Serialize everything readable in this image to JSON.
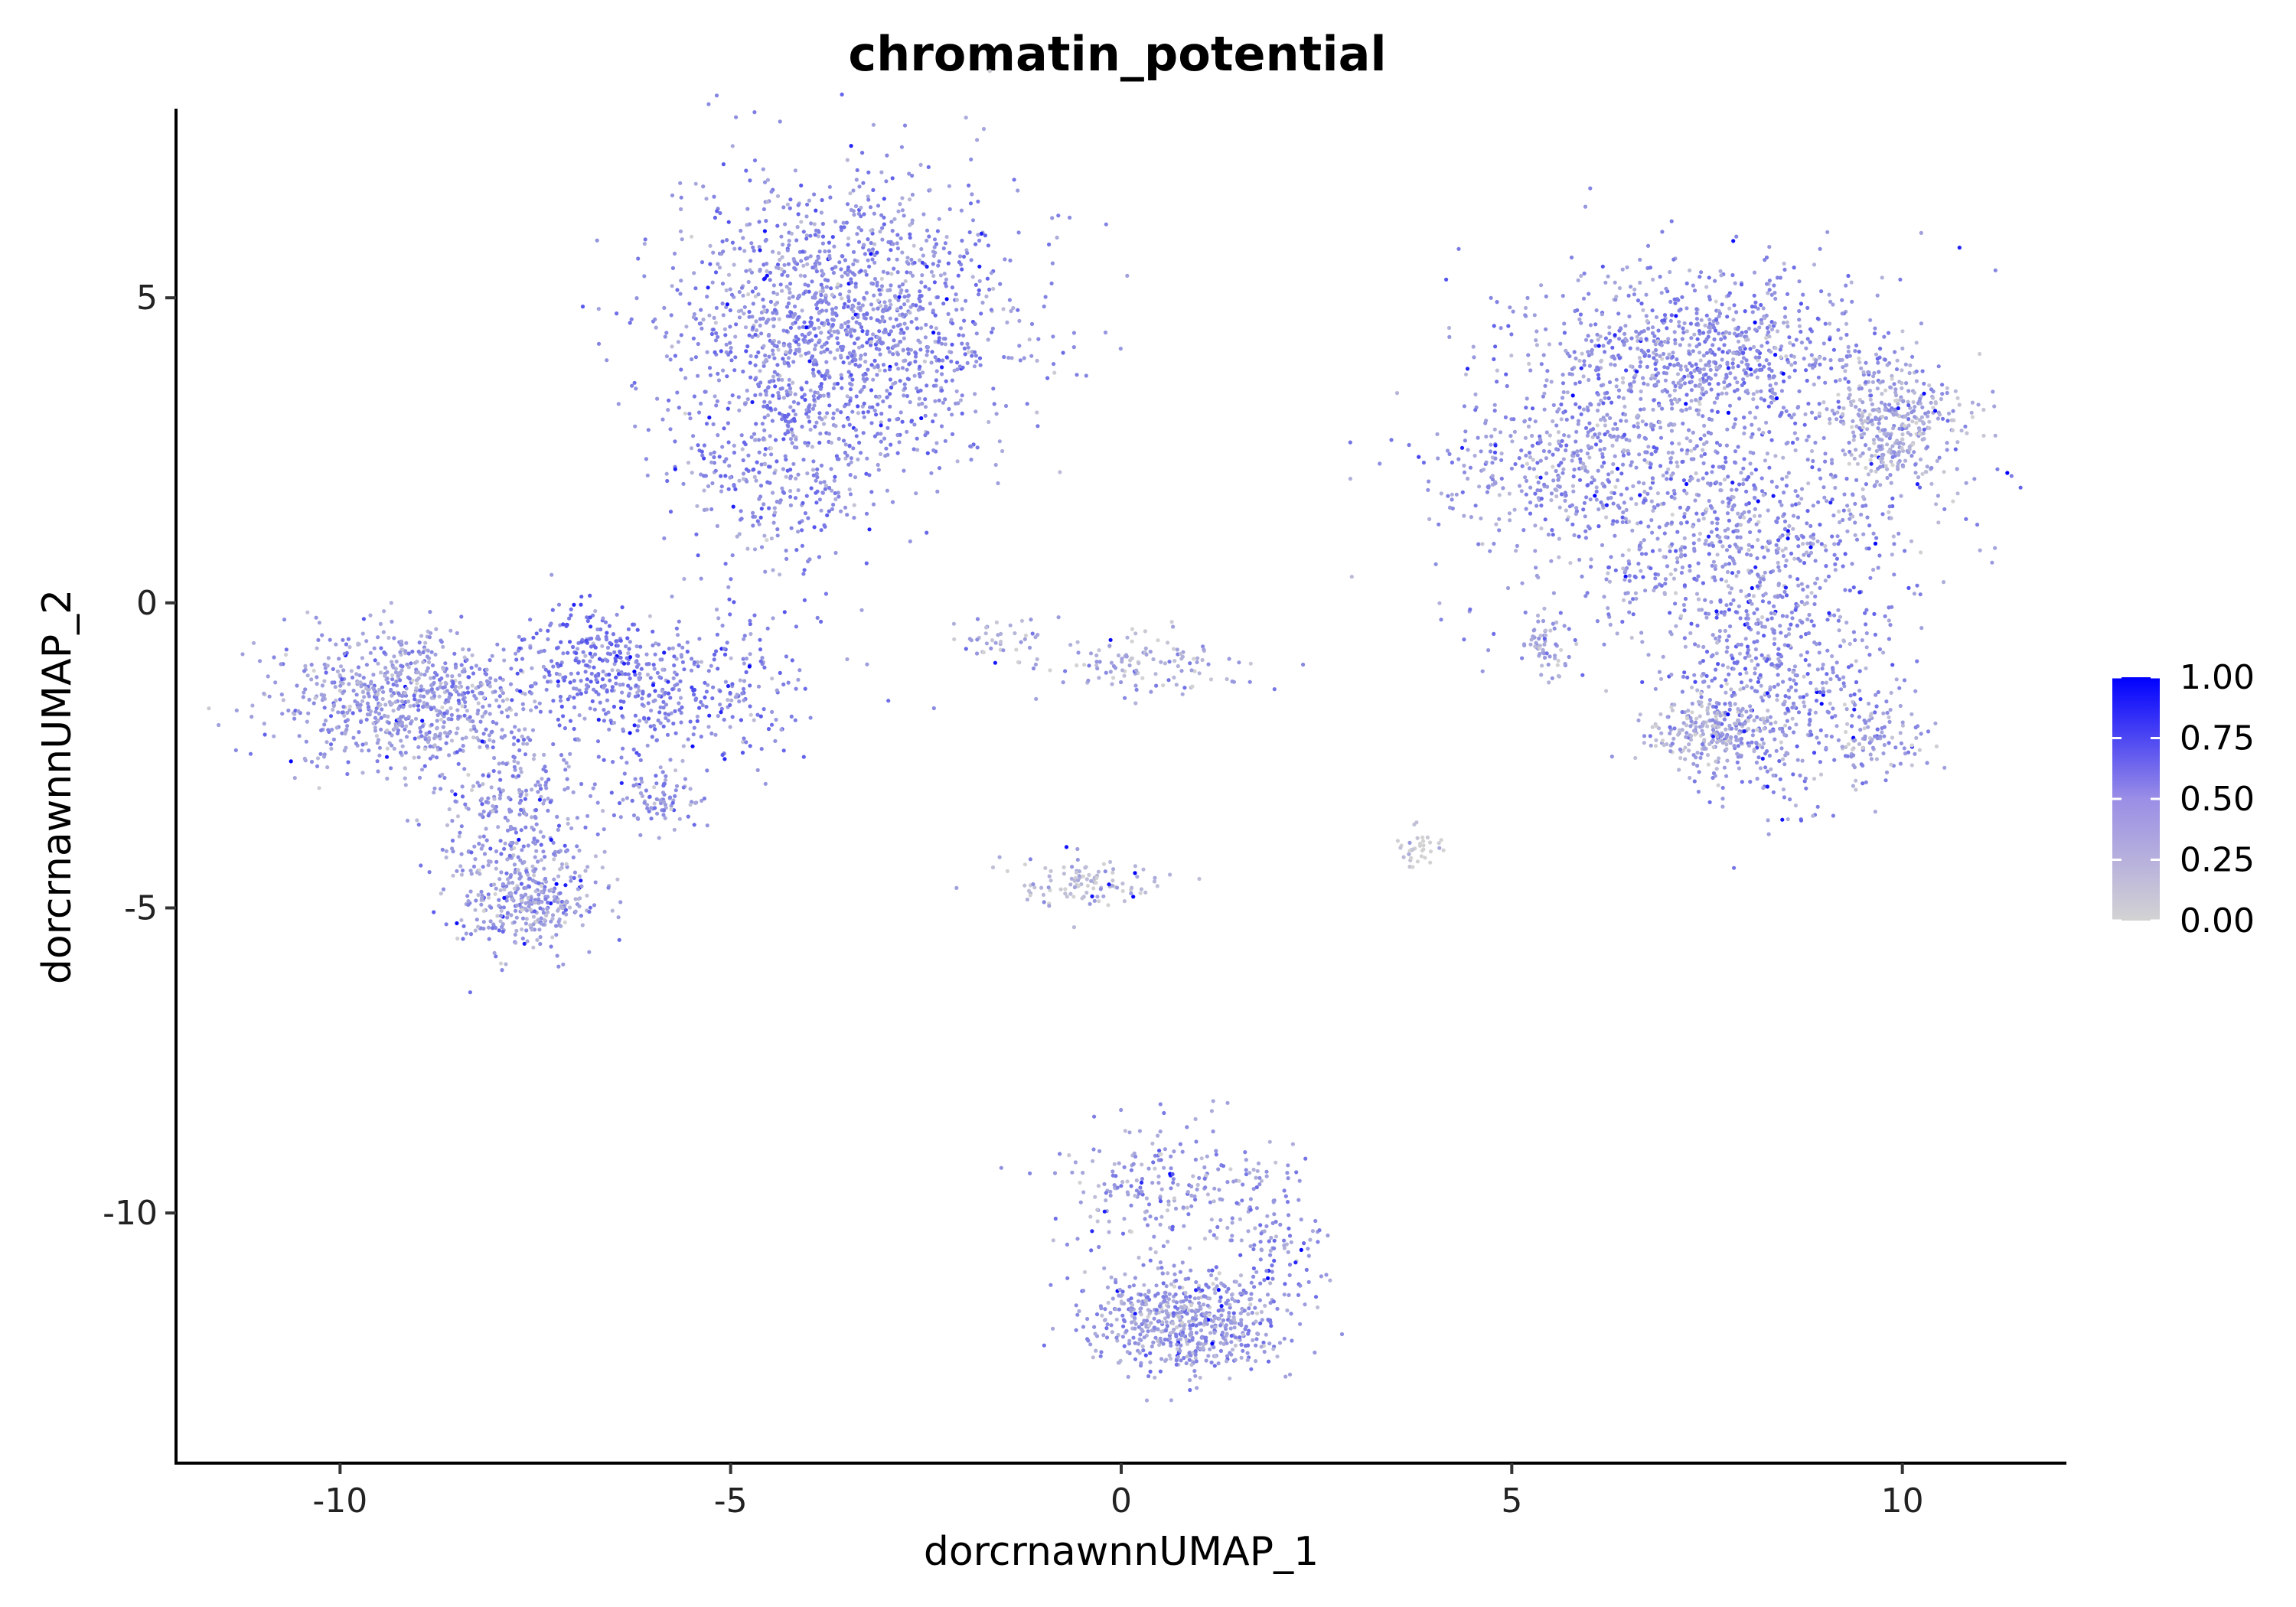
{
  "chart_data": {
    "type": "scatter",
    "title": "chromatin_potential",
    "xlabel": "dorcrnawnnUMAP_1",
    "ylabel": "dorcrnawnnUMAP_2",
    "xlim": [
      -12.1,
      12.1
    ],
    "ylim": [
      -14.1,
      8.1
    ],
    "x_ticks": [
      -10,
      -5,
      0,
      5,
      10
    ],
    "x_tick_labels": [
      "-10",
      "-5",
      "0",
      "5",
      "10"
    ],
    "y_ticks": [
      -10,
      -5,
      0,
      5
    ],
    "y_tick_labels": [
      "-10",
      "-5",
      "0",
      "5"
    ],
    "grid": false,
    "color_scale": {
      "low": 0.0,
      "high": 1.0,
      "low_color": "#d3d3d3",
      "high_color": "#0000ff",
      "ticks": [
        "1.00",
        "0.75",
        "0.50",
        "0.25",
        "0.00"
      ],
      "tick_values": [
        1.0,
        0.75,
        0.5,
        0.25,
        0.0
      ]
    },
    "legend_position": "right",
    "clusters": [
      {
        "name_hint": "upper-left-cluster",
        "cx": -3.5,
        "cy": 4.6,
        "sx": 1.1,
        "sy": 1.2,
        "n": 1500,
        "mean": 0.33
      },
      {
        "name_hint": "upper-left-stem",
        "cx": -4.4,
        "cy": 2.2,
        "sx": 0.6,
        "sy": 1.0,
        "n": 320,
        "mean": 0.35
      },
      {
        "name_hint": "left-cluster",
        "cx": -9.2,
        "cy": -1.6,
        "sx": 0.8,
        "sy": 0.55,
        "n": 750,
        "mean": 0.27
      },
      {
        "name_hint": "left-arm",
        "cx": -7.8,
        "cy": -3.6,
        "sx": 0.5,
        "sy": 1.0,
        "n": 380,
        "mean": 0.3
      },
      {
        "name_hint": "left-lower",
        "cx": -7.6,
        "cy": -4.9,
        "sx": 0.45,
        "sy": 0.35,
        "n": 260,
        "mean": 0.25
      },
      {
        "name_hint": "bridge",
        "cx": -5.8,
        "cy": -1.4,
        "sx": 0.9,
        "sy": 0.6,
        "n": 420,
        "mean": 0.38
      },
      {
        "name_hint": "bridge-upper",
        "cx": -6.8,
        "cy": -0.8,
        "sx": 0.35,
        "sy": 0.4,
        "n": 140,
        "mean": 0.45
      },
      {
        "name_hint": "bridge-lower",
        "cx": -5.9,
        "cy": -3.2,
        "sx": 0.3,
        "sy": 0.25,
        "n": 90,
        "mean": 0.3
      },
      {
        "name_hint": "right-top",
        "cx": 7.4,
        "cy": 4.1,
        "sx": 1.2,
        "sy": 0.7,
        "n": 900,
        "mean": 0.32
      },
      {
        "name_hint": "right-wing",
        "cx": 5.6,
        "cy": 2.4,
        "sx": 0.9,
        "sy": 0.6,
        "n": 350,
        "mean": 0.3
      },
      {
        "name_hint": "right-mid",
        "cx": 7.7,
        "cy": 1.2,
        "sx": 1.3,
        "sy": 1.0,
        "n": 800,
        "mean": 0.3
      },
      {
        "name_hint": "right-far",
        "cx": 9.9,
        "cy": 2.9,
        "sx": 0.45,
        "sy": 0.5,
        "n": 350,
        "mean": 0.18
      },
      {
        "name_hint": "right-lower",
        "cx": 8.3,
        "cy": -1.2,
        "sx": 0.7,
        "sy": 1.0,
        "n": 500,
        "mean": 0.33
      },
      {
        "name_hint": "right-bottom",
        "cx": 7.6,
        "cy": -2.1,
        "sx": 0.4,
        "sy": 0.3,
        "n": 230,
        "mean": 0.2
      },
      {
        "name_hint": "right-bottom-far",
        "cx": 9.6,
        "cy": -2.2,
        "sx": 0.35,
        "sy": 0.4,
        "n": 120,
        "mean": 0.25
      },
      {
        "name_hint": "right-small",
        "cx": 5.4,
        "cy": -0.7,
        "sx": 0.15,
        "sy": 0.25,
        "n": 60,
        "mean": 0.22
      },
      {
        "name_hint": "center-upper",
        "cx": 0.3,
        "cy": -1.0,
        "sx": 0.7,
        "sy": 0.25,
        "n": 120,
        "mean": 0.2
      },
      {
        "name_hint": "center-left-upper",
        "cx": -1.5,
        "cy": -0.6,
        "sx": 0.3,
        "sy": 0.2,
        "n": 40,
        "mean": 0.15
      },
      {
        "name_hint": "center-lower",
        "cx": -0.4,
        "cy": -4.6,
        "sx": 0.55,
        "sy": 0.25,
        "n": 110,
        "mean": 0.12
      },
      {
        "name_hint": "small-right",
        "cx": 3.8,
        "cy": -4.0,
        "sx": 0.15,
        "sy": 0.2,
        "n": 35,
        "mean": 0.05
      },
      {
        "name_hint": "bottom-cluster",
        "cx": 0.8,
        "cy": -11.8,
        "sx": 0.6,
        "sy": 0.45,
        "n": 650,
        "mean": 0.28
      },
      {
        "name_hint": "bottom-upper",
        "cx": 0.6,
        "cy": -9.6,
        "sx": 0.7,
        "sy": 0.5,
        "n": 220,
        "mean": 0.25
      },
      {
        "name_hint": "bottom-right-arm",
        "cx": 2.0,
        "cy": -10.4,
        "sx": 0.3,
        "sy": 0.7,
        "n": 110,
        "mean": 0.32
      }
    ]
  }
}
